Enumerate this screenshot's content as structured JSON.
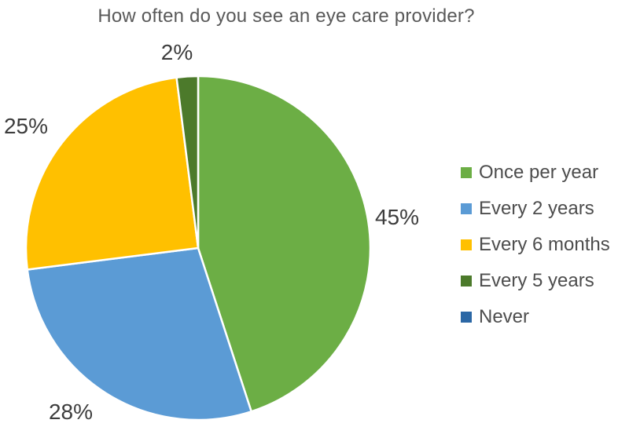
{
  "chart_data": {
    "type": "pie",
    "title": "How often do you see an eye care provider?",
    "categories": [
      "Once per year",
      "Every 2 years",
      "Every 6 months",
      "Every 5 years",
      "Never"
    ],
    "values": [
      45,
      28,
      25,
      2,
      0
    ],
    "data_labels": [
      "45%",
      "28%",
      "25%",
      "2%"
    ],
    "colors": [
      "#6CAE45",
      "#5B9BD5",
      "#FFC000",
      "#4C7A2B",
      "#2B67A5"
    ],
    "start_angle_deg": 0,
    "direction": "clockwise",
    "legend_position": "right",
    "slice_border_color": "#FFFFFF",
    "text_colors": {
      "title": "#595959",
      "data_labels": "#3D3D3D",
      "legend": "#4D4D4D"
    }
  }
}
